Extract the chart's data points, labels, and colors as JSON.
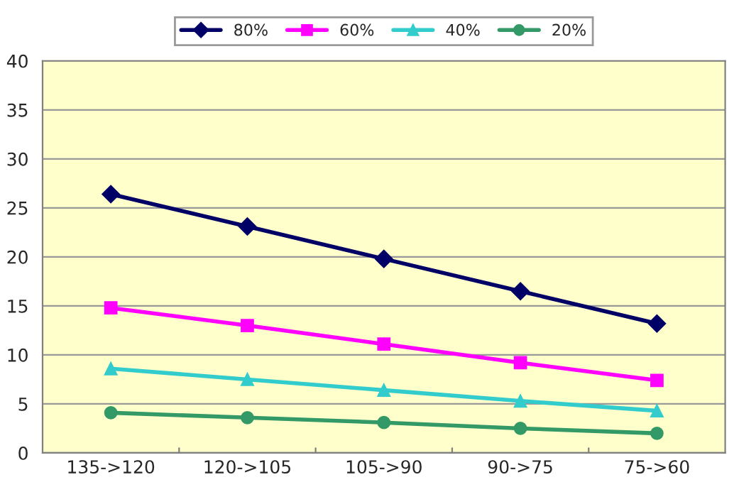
{
  "chart_data": {
    "type": "line",
    "categories": [
      "135->120",
      "120->105",
      "105->90",
      "90->75",
      "75->60"
    ],
    "series": [
      {
        "name": "80%",
        "color": "#000066",
        "marker": "diamond",
        "values": [
          26.4,
          23.1,
          19.8,
          16.5,
          13.2
        ]
      },
      {
        "name": "60%",
        "color": "#ff00ff",
        "marker": "square",
        "values": [
          14.8,
          13.0,
          11.1,
          9.2,
          7.4
        ]
      },
      {
        "name": "40%",
        "color": "#33cccc",
        "marker": "triangle",
        "values": [
          8.6,
          7.5,
          6.4,
          5.3,
          4.3
        ]
      },
      {
        "name": "20%",
        "color": "#339966",
        "marker": "circle",
        "values": [
          4.1,
          3.6,
          3.1,
          2.5,
          2.0
        ]
      }
    ],
    "ylim": [
      0,
      40
    ],
    "yticks": [
      0,
      5,
      10,
      15,
      20,
      25,
      30,
      35,
      40
    ],
    "grid": "y",
    "legend": "top",
    "line_style": "solid"
  }
}
